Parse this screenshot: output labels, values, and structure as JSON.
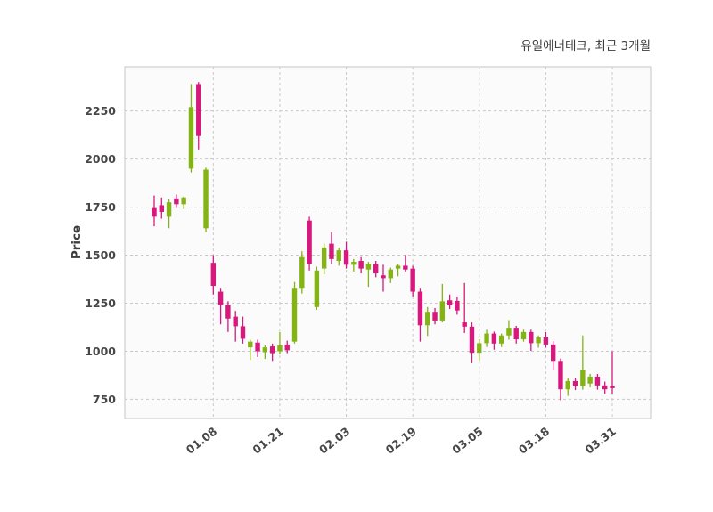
{
  "chart_data": {
    "type": "candlestick",
    "title": "유일에너테크, 최근 3개월",
    "series_name": "유일에너테크",
    "period": "최근 3개월",
    "ylabel": "Price",
    "xlabel": "",
    "ylim": [
      650,
      2480
    ],
    "y_ticks": [
      750,
      1000,
      1250,
      1500,
      1750,
      2000,
      2250
    ],
    "x_tick_labels": [
      "01.08",
      "01.21",
      "02.03",
      "02.19",
      "03.05",
      "03.18",
      "03.31"
    ],
    "x_tick_indices": [
      8,
      17,
      26,
      35,
      44,
      53,
      62
    ],
    "grid": {
      "visible": true,
      "style": "dashed"
    },
    "legend_position": "none",
    "colors": {
      "up": "#84b414",
      "down": "#d7197d",
      "grid": "#c9c9c9",
      "border": "#cfcfcf",
      "plot_bg": "#fbfbfb",
      "text": "#474747"
    },
    "candles_ohlc": [
      [
        1745,
        1810,
        1650,
        1700
      ],
      [
        1760,
        1800,
        1690,
        1725
      ],
      [
        1700,
        1790,
        1640,
        1775
      ],
      [
        1795,
        1815,
        1745,
        1765
      ],
      [
        1765,
        1805,
        1740,
        1800
      ],
      [
        1950,
        2390,
        1930,
        2270
      ],
      [
        2390,
        2400,
        2050,
        2120
      ],
      [
        1640,
        1955,
        1620,
        1945
      ],
      [
        1460,
        1500,
        1295,
        1340
      ],
      [
        1310,
        1330,
        1140,
        1240
      ],
      [
        1240,
        1260,
        1100,
        1170
      ],
      [
        1180,
        1210,
        1050,
        1130
      ],
      [
        1130,
        1180,
        1040,
        1065
      ],
      [
        1020,
        1060,
        955,
        1050
      ],
      [
        1045,
        1060,
        970,
        1000
      ],
      [
        995,
        1030,
        960,
        1020
      ],
      [
        1025,
        1040,
        950,
        990
      ],
      [
        1000,
        1100,
        985,
        1030
      ],
      [
        1035,
        1055,
        990,
        1005
      ],
      [
        1050,
        1360,
        1040,
        1330
      ],
      [
        1330,
        1520,
        1300,
        1490
      ],
      [
        1680,
        1700,
        1420,
        1455
      ],
      [
        1230,
        1440,
        1215,
        1420
      ],
      [
        1430,
        1560,
        1400,
        1540
      ],
      [
        1560,
        1620,
        1455,
        1480
      ],
      [
        1470,
        1540,
        1445,
        1525
      ],
      [
        1525,
        1570,
        1430,
        1450
      ],
      [
        1450,
        1480,
        1415,
        1465
      ],
      [
        1470,
        1490,
        1405,
        1430
      ],
      [
        1425,
        1465,
        1335,
        1455
      ],
      [
        1455,
        1470,
        1385,
        1405
      ],
      [
        1395,
        1450,
        1310,
        1380
      ],
      [
        1380,
        1435,
        1355,
        1425
      ],
      [
        1430,
        1455,
        1390,
        1445
      ],
      [
        1445,
        1500,
        1415,
        1425
      ],
      [
        1430,
        1445,
        1285,
        1310
      ],
      [
        1310,
        1330,
        1050,
        1135
      ],
      [
        1135,
        1230,
        1080,
        1205
      ],
      [
        1205,
        1225,
        1140,
        1160
      ],
      [
        1160,
        1350,
        1150,
        1260
      ],
      [
        1265,
        1295,
        1220,
        1240
      ],
      [
        1262,
        1285,
        1190,
        1212
      ],
      [
        1150,
        1355,
        1095,
        1128
      ],
      [
        1128,
        1150,
        938,
        992
      ],
      [
        992,
        1062,
        952,
        1042
      ],
      [
        1042,
        1112,
        1022,
        1092
      ],
      [
        1092,
        1102,
        1008,
        1040
      ],
      [
        1040,
        1092,
        1022,
        1082
      ],
      [
        1082,
        1162,
        1060,
        1122
      ],
      [
        1122,
        1132,
        1040,
        1062
      ],
      [
        1062,
        1112,
        1050,
        1100
      ],
      [
        1100,
        1112,
        1002,
        1042
      ],
      [
        1042,
        1082,
        1018,
        1072
      ],
      [
        1072,
        1100,
        1018,
        1035
      ],
      [
        1035,
        1052,
        900,
        950
      ],
      [
        950,
        962,
        745,
        802
      ],
      [
        802,
        862,
        768,
        845
      ],
      [
        845,
        862,
        798,
        820
      ],
      [
        820,
        1082,
        800,
        902
      ],
      [
        832,
        882,
        812,
        868
      ],
      [
        868,
        882,
        800,
        822
      ],
      [
        822,
        842,
        778,
        802
      ],
      [
        820,
        1000,
        780,
        808
      ]
    ]
  }
}
